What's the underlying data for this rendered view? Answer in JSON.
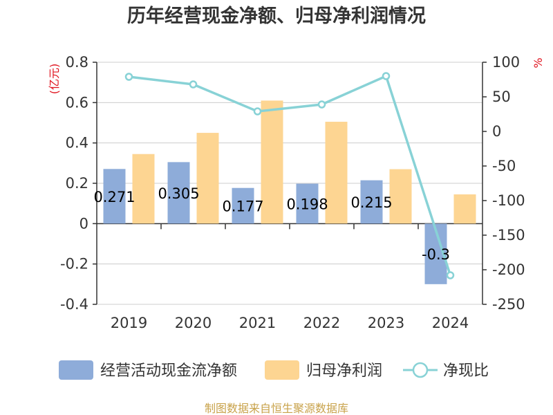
{
  "chart_data": {
    "type": "bar",
    "title": "历年经营现金净额、归母净利润情况",
    "categories": [
      "2019",
      "2020",
      "2021",
      "2022",
      "2023",
      "2024"
    ],
    "series": [
      {
        "name": "经营活动现金流净额",
        "type": "bar",
        "axis": "left",
        "color": "#8eacd9",
        "values": [
          0.271,
          0.305,
          0.177,
          0.198,
          0.215,
          -0.3
        ],
        "labels": [
          "0.271",
          "0.305",
          "0.177",
          "0.198",
          "0.215",
          "-0.3"
        ]
      },
      {
        "name": "归母净利润",
        "type": "bar",
        "axis": "left",
        "color": "#fdd592",
        "values": [
          0.345,
          0.45,
          0.61,
          0.505,
          0.27,
          0.145
        ]
      },
      {
        "name": "净现比",
        "type": "line",
        "axis": "right",
        "color": "#88d2d6",
        "values": [
          79,
          68,
          29,
          39,
          80,
          -208
        ]
      }
    ],
    "y_left": {
      "unit": "(亿元)",
      "min": -0.4,
      "max": 0.8,
      "ticks": [
        "0.8",
        "0.6",
        "0.4",
        "0.2",
        "0",
        "-0.2",
        "-0.4"
      ],
      "tick_values": [
        0.8,
        0.6,
        0.4,
        0.2,
        0,
        -0.2,
        -0.4
      ]
    },
    "y_right": {
      "unit": "%",
      "min": -250,
      "max": 100,
      "ticks": [
        "100",
        "50",
        "0",
        "-50",
        "-100",
        "-150",
        "-200",
        "-250"
      ],
      "tick_values": [
        100,
        50,
        0,
        -50,
        -100,
        -150,
        -200,
        -250
      ]
    },
    "grid": true,
    "legend_position": "bottom"
  },
  "footer": {
    "source": "制图数据来自恒生聚源数据库"
  }
}
